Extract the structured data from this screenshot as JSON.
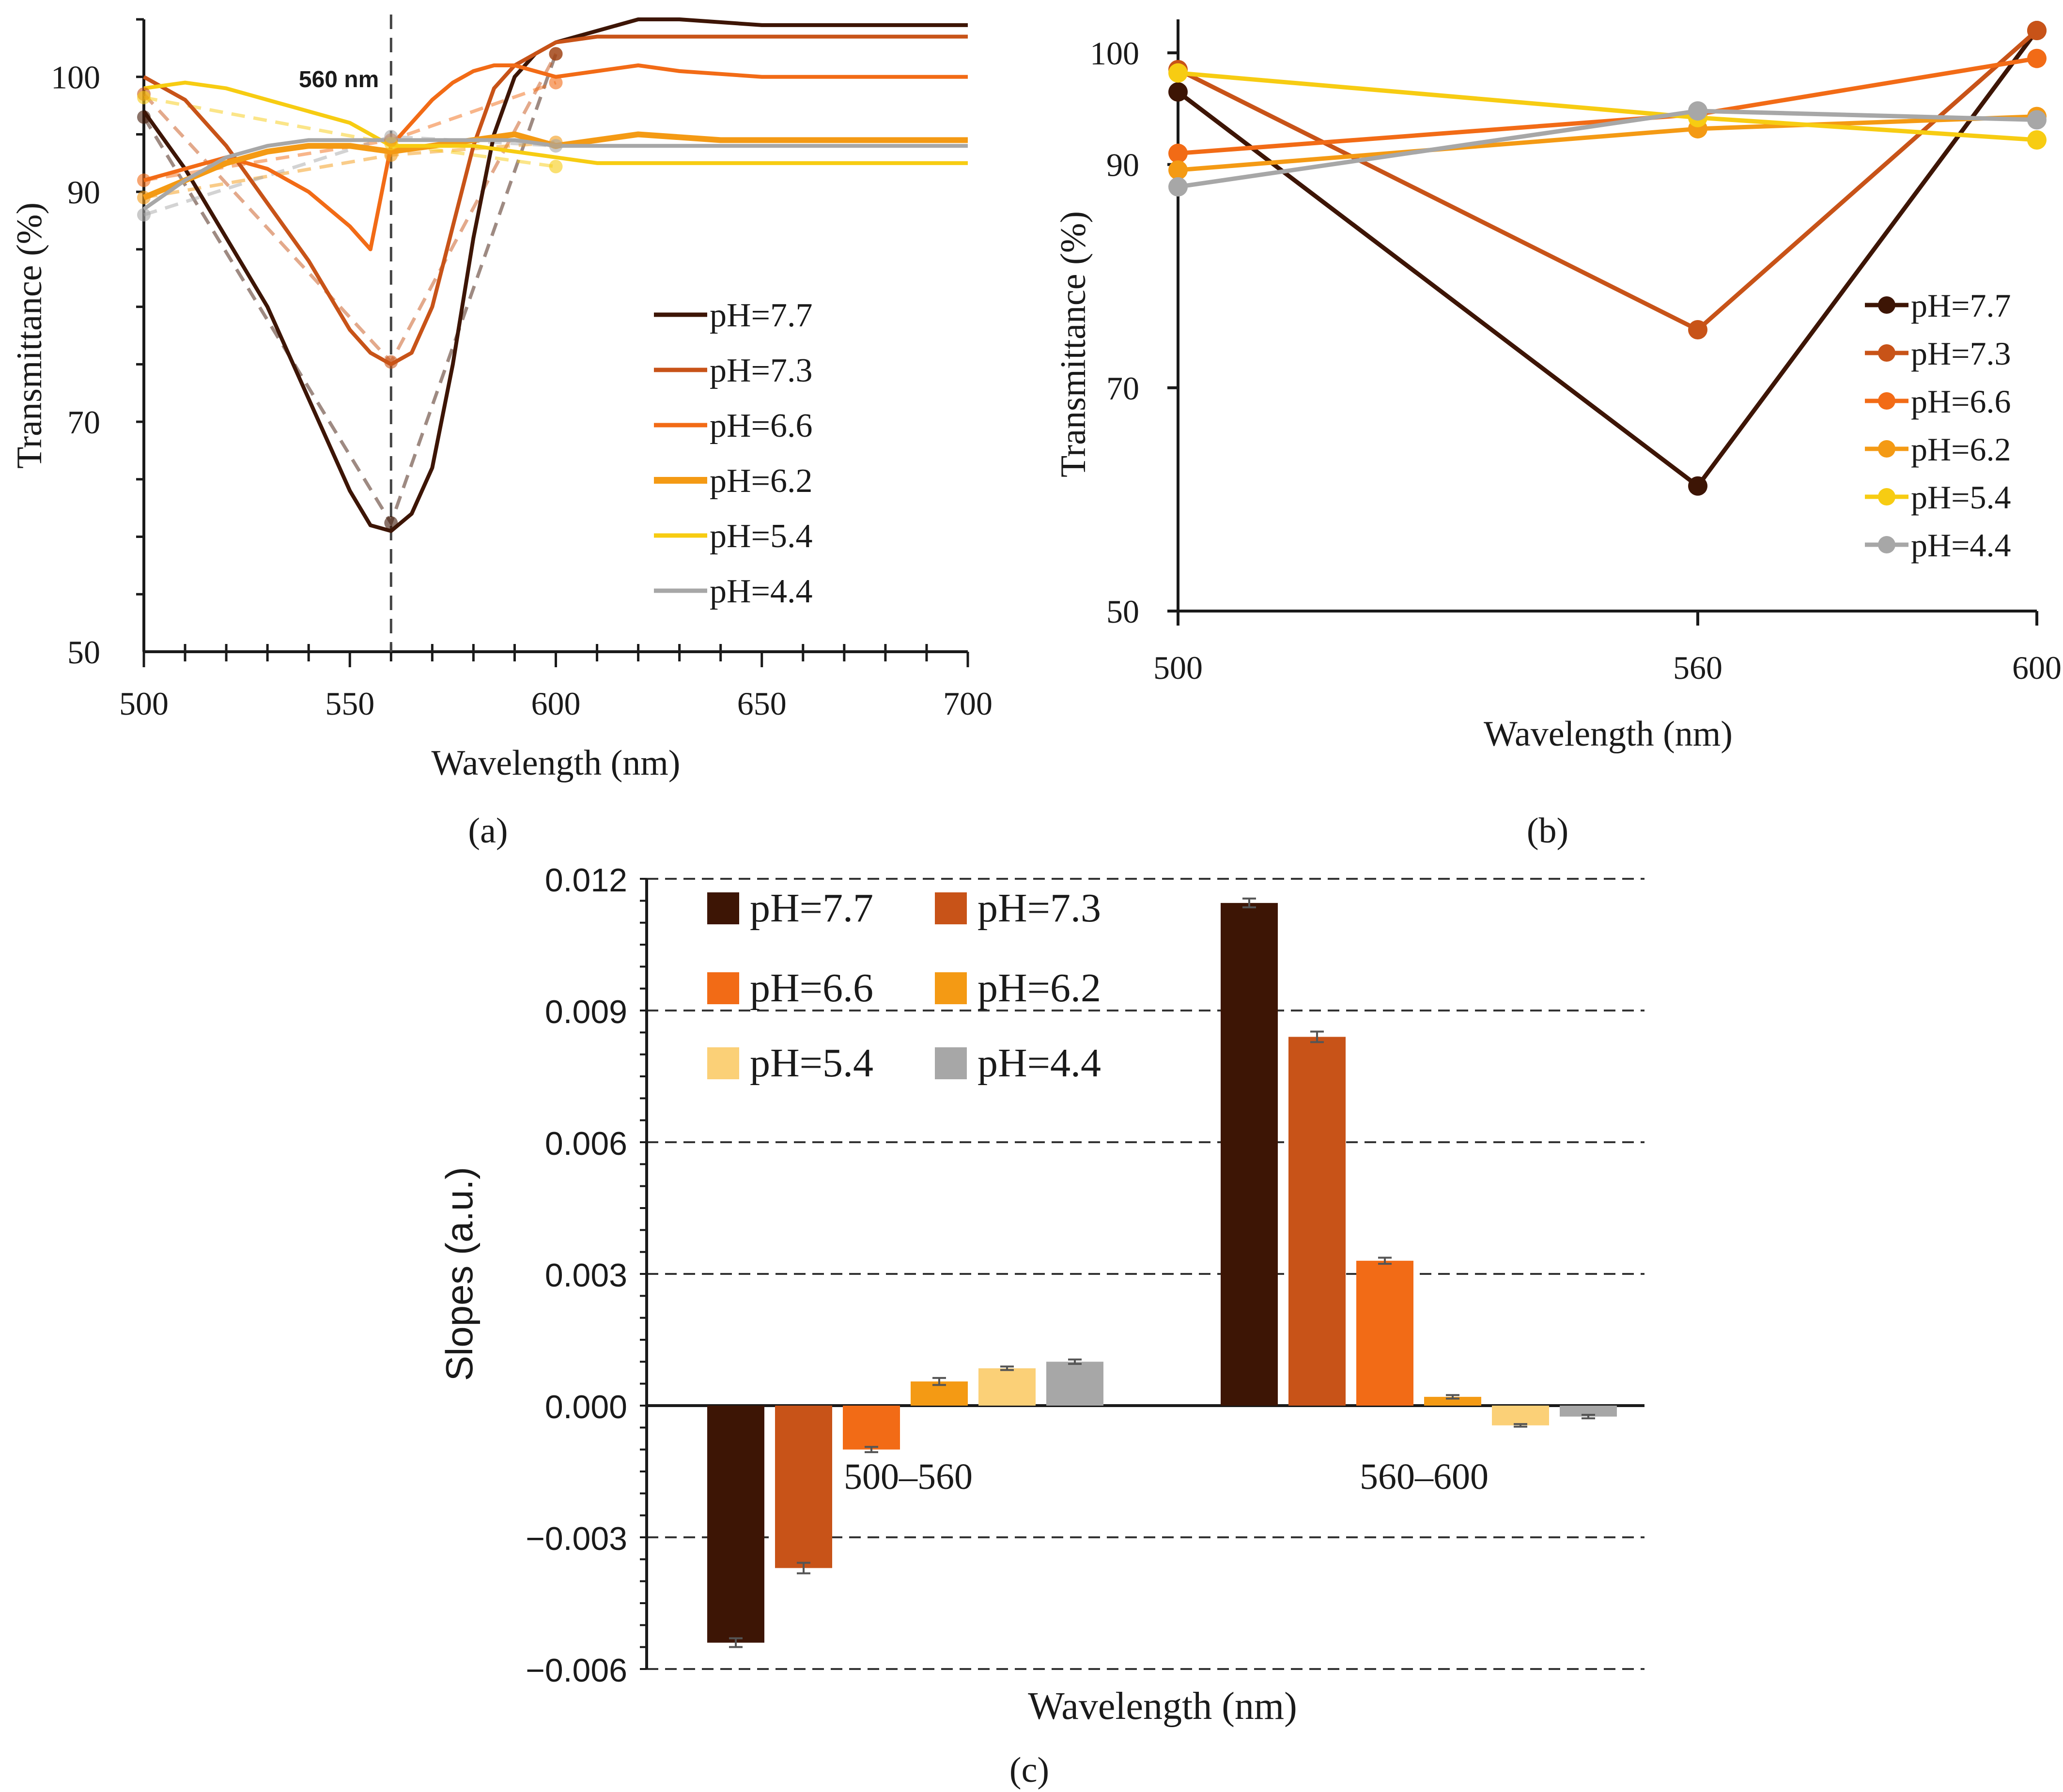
{
  "colors": {
    "pH77": "#3d1505",
    "pH73": "#c85318",
    "pH66": "#f26b16",
    "pH62": "#f49a14",
    "pH54": "#f7cc12",
    "pH54_bar": "#fbd077",
    "pH44": "#a7a7a7",
    "axis": "#1a1a1a",
    "grid": "#333333"
  },
  "chart_data": [
    {
      "id": "a",
      "type": "line",
      "panel_label": "(a)",
      "xlabel": "Wavelength (nm)",
      "ylabel": "Transmittance (%)",
      "xlim": [
        500,
        700
      ],
      "ylim": [
        50,
        105
      ],
      "xticks": [
        "500",
        "550",
        "600",
        "650",
        "700"
      ],
      "yticks": [
        "50",
        "70",
        "90",
        "100"
      ],
      "annotation": "560 nm",
      "reference_line_x": 560,
      "legend_position": "right",
      "series": [
        {
          "name": "pH=7.7",
          "color_key": "pH77",
          "x": [
            500,
            510,
            520,
            530,
            540,
            550,
            555,
            560,
            565,
            570,
            575,
            580,
            585,
            590,
            595,
            600,
            610,
            620,
            630,
            650,
            680,
            700
          ],
          "y": [
            97,
            92,
            86,
            80,
            72,
            64,
            61,
            60.5,
            62,
            66,
            75,
            86,
            95,
            100,
            102,
            103,
            104,
            105,
            105,
            104.5,
            104.5,
            104.5
          ]
        },
        {
          "name": "pH=7.3",
          "color_key": "pH73",
          "x": [
            500,
            510,
            520,
            530,
            540,
            550,
            555,
            560,
            565,
            570,
            575,
            580,
            585,
            590,
            595,
            600,
            610,
            620,
            630,
            650,
            680,
            700
          ],
          "y": [
            100,
            98,
            94,
            89,
            84,
            78,
            76,
            75,
            76,
            80,
            87,
            94,
            99,
            101,
            102,
            103,
            103.5,
            103.5,
            103.5,
            103.5,
            103.5,
            103.5
          ]
        },
        {
          "name": "pH=6.6",
          "color_key": "pH66",
          "x": [
            500,
            510,
            520,
            530,
            540,
            550,
            555,
            560,
            565,
            570,
            575,
            580,
            585,
            590,
            595,
            600,
            610,
            620,
            630,
            650,
            680,
            700
          ],
          "y": [
            91,
            92,
            93,
            92,
            90,
            87,
            85,
            94,
            96,
            98,
            99.5,
            100.5,
            101,
            101,
            100.5,
            100,
            100.5,
            101,
            100.5,
            100,
            100,
            100
          ]
        },
        {
          "name": "pH=6.2",
          "color_key": "pH62",
          "x": [
            500,
            510,
            520,
            530,
            540,
            550,
            560,
            570,
            580,
            590,
            600,
            620,
            640,
            660,
            680,
            700
          ],
          "y": [
            89.5,
            91,
            92.5,
            93.5,
            94,
            94,
            93.5,
            94,
            94.5,
            95,
            94,
            95,
            94.5,
            94.5,
            94.5,
            94.5
          ]
        },
        {
          "name": "pH=5.4",
          "color_key": "pH54",
          "x": [
            500,
            510,
            520,
            530,
            540,
            550,
            560,
            570,
            580,
            590,
            600,
            610,
            620,
            650,
            680,
            700
          ],
          "y": [
            99,
            99.5,
            99,
            98,
            97,
            96,
            94,
            94,
            94,
            93.5,
            93,
            92.5,
            92.5,
            92.5,
            92.5,
            92.5
          ]
        },
        {
          "name": "pH=4.4",
          "color_key": "pH44",
          "x": [
            500,
            510,
            520,
            530,
            540,
            550,
            560,
            570,
            580,
            590,
            600,
            620,
            640,
            660,
            680,
            700
          ],
          "y": [
            88.5,
            91,
            93,
            94,
            94.5,
            94.5,
            94.5,
            94.5,
            94.5,
            94.5,
            94,
            94,
            94,
            94,
            94,
            94
          ]
        }
      ],
      "dashed_series": [
        {
          "color_key": "pH77",
          "x": [
            500,
            560,
            600
          ],
          "y": [
            96.5,
            61.2,
            102
          ]
        },
        {
          "color_key": "pH73",
          "x": [
            500,
            560,
            600
          ],
          "y": [
            98.5,
            75.2,
            102
          ]
        },
        {
          "color_key": "pH66",
          "x": [
            500,
            560,
            600
          ],
          "y": [
            91,
            94.5,
            99.5
          ]
        },
        {
          "color_key": "pH62",
          "x": [
            500,
            560,
            600
          ],
          "y": [
            89.5,
            93.2,
            94.3
          ]
        },
        {
          "color_key": "pH54",
          "x": [
            500,
            560,
            600
          ],
          "y": [
            98.2,
            94.2,
            92.2
          ]
        },
        {
          "color_key": "pH44",
          "x": [
            500,
            560,
            600
          ],
          "y": [
            88,
            94.8,
            94
          ]
        }
      ]
    },
    {
      "id": "b",
      "type": "line",
      "panel_label": "(b)",
      "xlabel": "Wavelength (nm)",
      "ylabel": "Transmittance (%)",
      "categories": [
        "500",
        "560",
        "600"
      ],
      "ylim": [
        50,
        103
      ],
      "yticks": [
        "50",
        "70",
        "90",
        "100"
      ],
      "legend_position": "right",
      "series": [
        {
          "name": "pH=7.7",
          "color_key": "pH77",
          "values": [
            96.5,
            61.2,
            102
          ]
        },
        {
          "name": "pH=7.3",
          "color_key": "pH73",
          "values": [
            98.5,
            75.2,
            102
          ]
        },
        {
          "name": "pH=6.6",
          "color_key": "pH66",
          "values": [
            91,
            94.5,
            99.5
          ]
        },
        {
          "name": "pH=6.2",
          "color_key": "pH62",
          "values": [
            89.5,
            93.2,
            94.3
          ]
        },
        {
          "name": "pH=5.4",
          "color_key": "pH54",
          "values": [
            98.2,
            94.2,
            92.2
          ]
        },
        {
          "name": "pH=4.4",
          "color_key": "pH44",
          "values": [
            88,
            94.8,
            94
          ]
        }
      ]
    },
    {
      "id": "c",
      "type": "bar",
      "panel_label": "(c)",
      "xlabel": "Wavelength (nm)",
      "ylabel": "Slopes (a.u.)",
      "categories": [
        "500–560",
        "560–600"
      ],
      "ylim": [
        -0.006,
        0.012
      ],
      "yticks": [
        "0.012",
        "0.009",
        "0.006",
        "0.003",
        "0.000",
        "−0.003",
        "−0.006"
      ],
      "grid": true,
      "legend_position": "top-left",
      "series": [
        {
          "name": "pH=7.7",
          "color_key": "pH77",
          "values": [
            -0.0054,
            0.01145
          ],
          "errors": [
            0.0001,
            0.0001
          ]
        },
        {
          "name": "pH=7.3",
          "color_key": "pH73",
          "values": [
            -0.0037,
            0.0084
          ],
          "errors": [
            0.00012,
            0.00012
          ]
        },
        {
          "name": "pH=6.6",
          "color_key": "pH66",
          "values": [
            -0.001,
            0.0033
          ],
          "errors": [
            6e-05,
            7e-05
          ]
        },
        {
          "name": "pH=6.2",
          "color_key": "pH62",
          "values": [
            0.00055,
            0.0002
          ],
          "errors": [
            8e-05,
            4e-05
          ]
        },
        {
          "name": "pH=5.4",
          "color_key": "pH54_bar",
          "values": [
            0.00085,
            -0.00045
          ],
          "errors": [
            4e-05,
            3e-05
          ]
        },
        {
          "name": "pH=4.4",
          "color_key": "pH44",
          "values": [
            0.001,
            -0.00025
          ],
          "errors": [
            5e-05,
            4e-05
          ]
        }
      ]
    }
  ]
}
